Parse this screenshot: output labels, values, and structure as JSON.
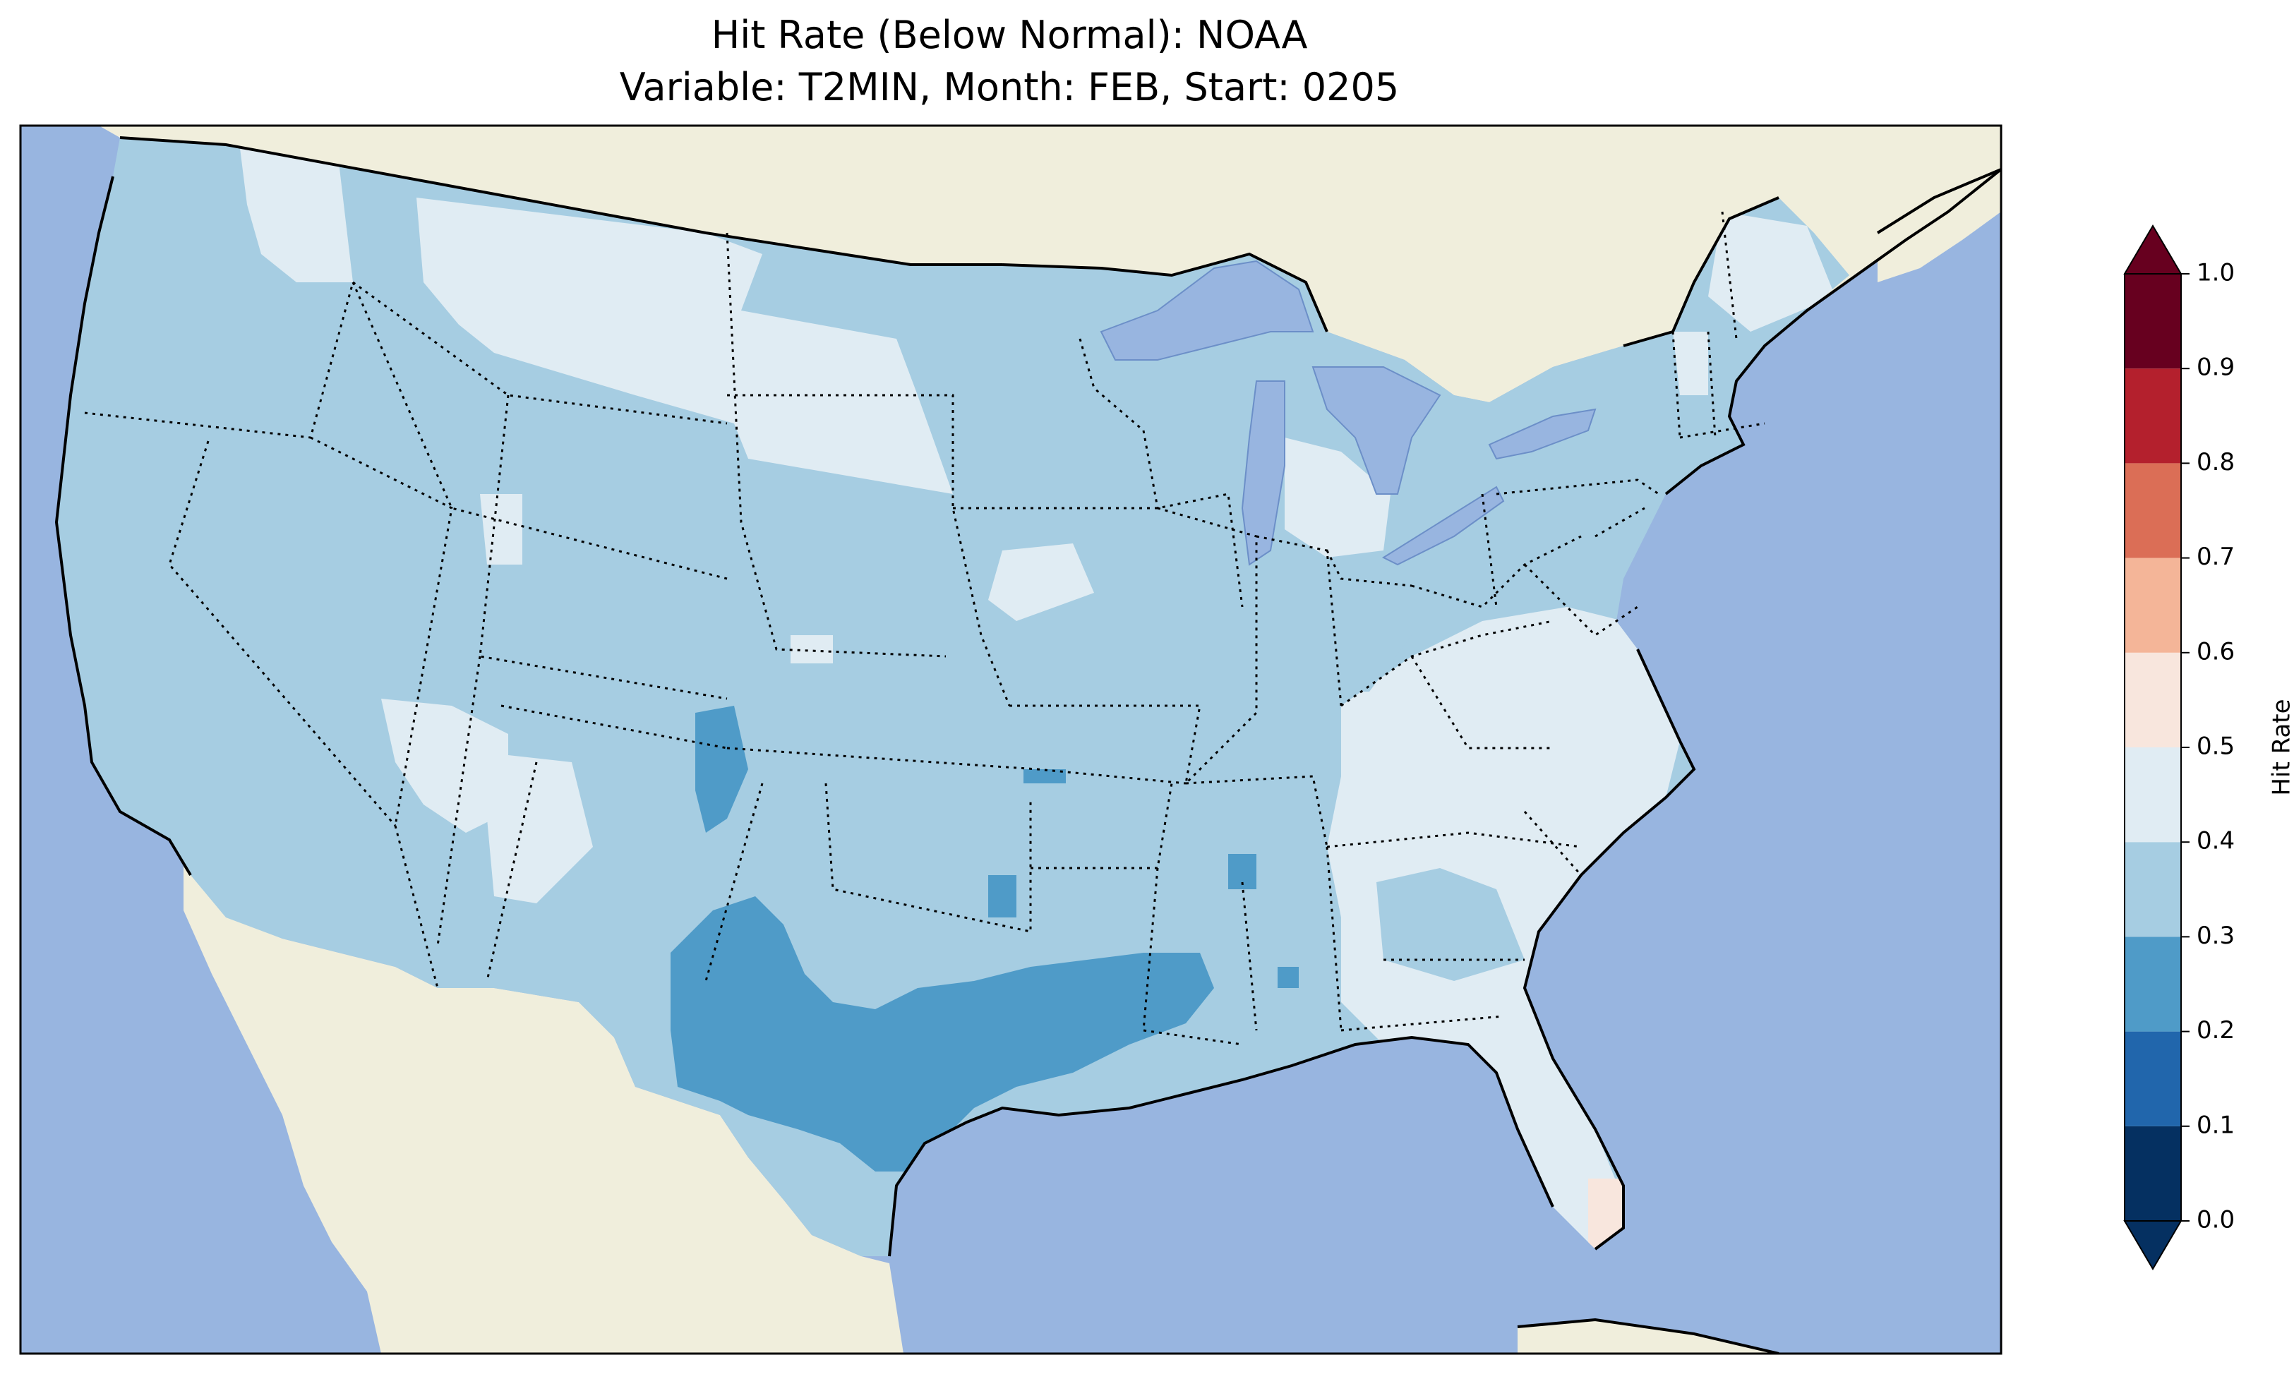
{
  "title": {
    "line1": "Hit Rate (Below Normal): NOAA",
    "line2": "Variable: T2MIN, Month: FEB, Start: 0205"
  },
  "colors": {
    "ocean": "#98b5e0",
    "land": "#f0eedc",
    "lake": "#98b5e0",
    "border": "#000000"
  },
  "map_data": {
    "region": "Contiguous United States",
    "regions": [
      {
        "name": "pacific-northwest",
        "value": 0.35
      },
      {
        "name": "northern-idaho-montana",
        "value": 0.45
      },
      {
        "name": "northern-plains",
        "value": 0.45
      },
      {
        "name": "great-basin",
        "value": 0.35
      },
      {
        "name": "southwest-utah-nevada",
        "value": 0.45
      },
      {
        "name": "new-mexico-plateau",
        "value": 0.45
      },
      {
        "name": "central-plains",
        "value": 0.35
      },
      {
        "name": "texas-central",
        "value": 0.25
      },
      {
        "name": "gulf-coast-louisiana",
        "value": 0.25
      },
      {
        "name": "midwest",
        "value": 0.35
      },
      {
        "name": "southeast",
        "value": 0.45
      },
      {
        "name": "mid-atlantic",
        "value": 0.45
      },
      {
        "name": "northeast",
        "value": 0.35
      },
      {
        "name": "maine",
        "value": 0.45
      },
      {
        "name": "south-florida",
        "value": 0.55
      }
    ]
  },
  "colorbar": {
    "label": "Hit Rate",
    "ticks": [
      "0.0",
      "0.1",
      "0.2",
      "0.3",
      "0.4",
      "0.5",
      "0.6",
      "0.7",
      "0.8",
      "0.9",
      "1.0"
    ],
    "bins": [
      {
        "lo": 0.0,
        "hi": 0.1,
        "color": "#053061"
      },
      {
        "lo": 0.1,
        "hi": 0.2,
        "color": "#2166ac"
      },
      {
        "lo": 0.2,
        "hi": 0.3,
        "color": "#4f9bc8"
      },
      {
        "lo": 0.3,
        "hi": 0.4,
        "color": "#a6cde2"
      },
      {
        "lo": 0.4,
        "hi": 0.5,
        "color": "#e0ecf3"
      },
      {
        "lo": 0.5,
        "hi": 0.6,
        "color": "#f8e6dd"
      },
      {
        "lo": 0.6,
        "hi": 0.7,
        "color": "#f4b598"
      },
      {
        "lo": 0.7,
        "hi": 0.8,
        "color": "#db6e56"
      },
      {
        "lo": 0.8,
        "hi": 0.9,
        "color": "#b4202d"
      },
      {
        "lo": 0.9,
        "hi": 1.0,
        "color": "#67001f"
      }
    ],
    "extend_low_color": "#053061",
    "extend_high_color": "#67001f"
  }
}
